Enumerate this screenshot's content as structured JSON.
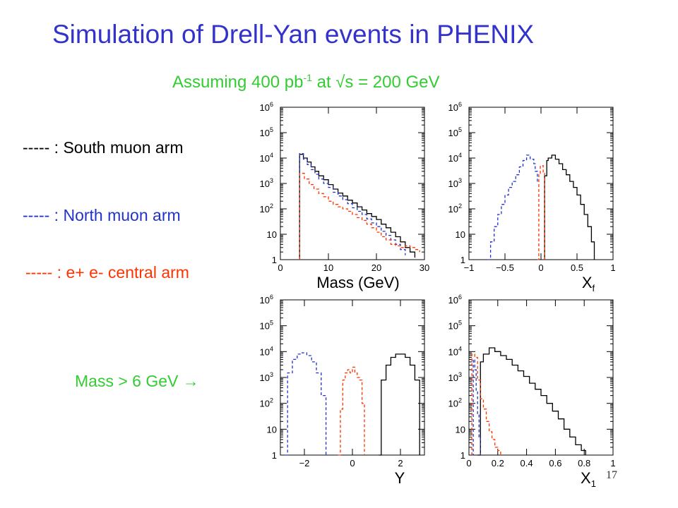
{
  "slide": {
    "title": "Simulation of Drell-Yan events in PHENIX",
    "subtitle_prefix": "Assuming 400 pb",
    "subtitle_exp": "-1",
    "subtitle_suffix": " at √s = 200 GeV",
    "legend_south": "----- : South muon arm",
    "legend_north": "----- : North muon arm",
    "legend_central": "----- : e+ e- central arm",
    "cut_note": "Mass > 6 GeV →",
    "page_number": "17"
  },
  "colors": {
    "title": "#3333cc",
    "subtitle": "#33cc33",
    "south": "#000000",
    "north": "#2233cc",
    "central": "#ff3300"
  },
  "chart_data": [
    {
      "type": "line",
      "xlabel": "Mass (GeV)",
      "xlim": [
        0,
        30
      ],
      "ylim": [
        1,
        1000000
      ],
      "yscale": "log",
      "xticks": [
        {
          "v": 0,
          "t": "0"
        },
        {
          "v": 10,
          "t": "10"
        },
        {
          "v": 20,
          "t": "20"
        },
        {
          "v": 30,
          "t": "30"
        }
      ],
      "series": [
        {
          "color": "#000000",
          "dash": "",
          "x": [
            4,
            4.8,
            5.6,
            6.4,
            7.2,
            8,
            9,
            10,
            11,
            12,
            13,
            14,
            15,
            16,
            17,
            18,
            19,
            20,
            21,
            22,
            23,
            24,
            25,
            26,
            27,
            28
          ],
          "values": [
            14000,
            10000,
            7000,
            4500,
            3000,
            2000,
            1400,
            900,
            600,
            420,
            320,
            220,
            170,
            120,
            90,
            65,
            50,
            38,
            25,
            18,
            12,
            8,
            5,
            3,
            2,
            1.2
          ]
        },
        {
          "color": "#2233cc",
          "dash": "4,3",
          "x": [
            4,
            4.8,
            5.6,
            6.4,
            7.2,
            8,
            9,
            10,
            11,
            12,
            13,
            14,
            15,
            16,
            17,
            18,
            19,
            20,
            21,
            22,
            23,
            24,
            25,
            26
          ],
          "values": [
            15000,
            9000,
            5500,
            3500,
            2300,
            1500,
            1000,
            700,
            450,
            320,
            230,
            160,
            110,
            80,
            60,
            40,
            28,
            20,
            13,
            9,
            6,
            4,
            2.5,
            1.5
          ]
        },
        {
          "color": "#ff3300",
          "dash": "4,3",
          "x": [
            4,
            5,
            6,
            7,
            8,
            9,
            10,
            11,
            12,
            13,
            14,
            15,
            16,
            17,
            18,
            19,
            20,
            21,
            22,
            23,
            24,
            25,
            26,
            27,
            28,
            29
          ],
          "values": [
            2500,
            1500,
            900,
            600,
            400,
            300,
            200,
            150,
            120,
            100,
            80,
            60,
            45,
            35,
            25,
            18,
            12,
            8,
            6,
            4,
            3.5,
            3,
            3.5,
            3,
            2.5,
            2
          ]
        }
      ]
    },
    {
      "type": "line",
      "xlabel": "Xf",
      "xlim": [
        -1,
        1
      ],
      "ylim": [
        1,
        1000000
      ],
      "yscale": "log",
      "xticks": [
        {
          "v": -1,
          "t": "−1"
        },
        {
          "v": -0.5,
          "t": "−0.5"
        },
        {
          "v": 0,
          "t": "0"
        },
        {
          "v": 0.5,
          "t": "0.5"
        },
        {
          "v": 1,
          "t": "1"
        }
      ],
      "series": [
        {
          "color": "#000000",
          "dash": "",
          "x": [
            0.05,
            0.08,
            0.1,
            0.15,
            0.2,
            0.25,
            0.3,
            0.35,
            0.4,
            0.45,
            0.5,
            0.55,
            0.6,
            0.65,
            0.7,
            0.74
          ],
          "values": [
            2000,
            8000,
            10000,
            13000,
            9000,
            6000,
            3500,
            2200,
            1200,
            700,
            350,
            150,
            60,
            20,
            5,
            1
          ]
        },
        {
          "color": "#2233cc",
          "dash": "4,3",
          "x": [
            -0.74,
            -0.7,
            -0.65,
            -0.6,
            -0.55,
            -0.5,
            -0.45,
            -0.4,
            -0.35,
            -0.3,
            -0.25,
            -0.2,
            -0.15,
            -0.1,
            -0.08,
            -0.05
          ],
          "values": [
            1,
            5,
            20,
            60,
            150,
            350,
            700,
            1200,
            2200,
            4500,
            8000,
            13000,
            9000,
            6000,
            3000,
            1000
          ]
        },
        {
          "color": "#ff3300",
          "dash": "4,3",
          "x": [
            -0.05,
            -0.03,
            -0.01,
            0.01,
            0.03,
            0.05
          ],
          "values": [
            1,
            2500,
            5000,
            5000,
            2500,
            1
          ]
        }
      ]
    },
    {
      "type": "line",
      "xlabel": "Y",
      "xlim": [
        -3,
        3
      ],
      "ylim": [
        1,
        1000000
      ],
      "yscale": "log",
      "xticks": [
        {
          "v": -2,
          "t": "−2"
        },
        {
          "v": 0,
          "t": "0"
        },
        {
          "v": 2,
          "t": "2"
        }
      ],
      "series": [
        {
          "color": "#000000",
          "dash": "",
          "x": [
            1.1,
            1.2,
            1.4,
            1.6,
            1.8,
            2.0,
            2.2,
            2.4,
            2.6,
            2.8
          ],
          "values": [
            1,
            800,
            3000,
            6000,
            8000,
            8000,
            6000,
            3000,
            800,
            1
          ]
        },
        {
          "color": "#2233cc",
          "dash": "4,3",
          "x": [
            -2.8,
            -2.7,
            -2.5,
            -2.3,
            -2.1,
            -1.9,
            -1.7,
            -1.5,
            -1.3,
            -1.1
          ],
          "values": [
            1,
            1500,
            5000,
            8000,
            9000,
            7000,
            4000,
            1500,
            200,
            1
          ]
        },
        {
          "color": "#ff3300",
          "dash": "4,3",
          "x": [
            -0.6,
            -0.5,
            -0.4,
            -0.3,
            -0.2,
            -0.1,
            0,
            0.1,
            0.2,
            0.3,
            0.4,
            0.5
          ],
          "values": [
            1,
            60,
            800,
            1500,
            2000,
            1500,
            2500,
            1500,
            1000,
            800,
            100,
            1
          ]
        }
      ]
    },
    {
      "type": "line",
      "xlabel": "X1",
      "xlim": [
        0,
        1
      ],
      "ylim": [
        1,
        1000000
      ],
      "yscale": "log",
      "xticks": [
        {
          "v": 0,
          "t": "0"
        },
        {
          "v": 0.2,
          "t": "0.2"
        },
        {
          "v": 0.4,
          "t": "0.4"
        },
        {
          "v": 0.6,
          "t": "0.6"
        },
        {
          "v": 0.8,
          "t": "0.8"
        },
        {
          "v": 1,
          "t": "1"
        }
      ],
      "series": [
        {
          "color": "#000000",
          "dash": "",
          "x": [
            0.06,
            0.08,
            0.1,
            0.14,
            0.18,
            0.22,
            0.26,
            0.3,
            0.34,
            0.38,
            0.42,
            0.46,
            0.5,
            0.54,
            0.58,
            0.62,
            0.66,
            0.7,
            0.74,
            0.78,
            0.81
          ],
          "values": [
            1,
            4000,
            8000,
            14000,
            10000,
            7000,
            5000,
            3000,
            1800,
            1100,
            600,
            350,
            200,
            100,
            50,
            25,
            10,
            5,
            2.5,
            1.5,
            1
          ]
        },
        {
          "color": "#2233cc",
          "dash": "4,3",
          "x": [
            0.02,
            0.03,
            0.04,
            0.05,
            0.06,
            0.07,
            0.08
          ],
          "values": [
            1,
            5000,
            2000,
            300,
            40,
            5,
            1
          ]
        },
        {
          "color": "#ff3300",
          "dash": "4,3",
          "x": [
            0.02,
            0.04,
            0.06,
            0.08,
            0.1,
            0.12,
            0.14,
            0.16,
            0.18,
            0.2,
            0.22
          ],
          "values": [
            8000,
            6000,
            800,
            150,
            60,
            20,
            8,
            4,
            2,
            1.5,
            1
          ]
        }
      ]
    }
  ]
}
